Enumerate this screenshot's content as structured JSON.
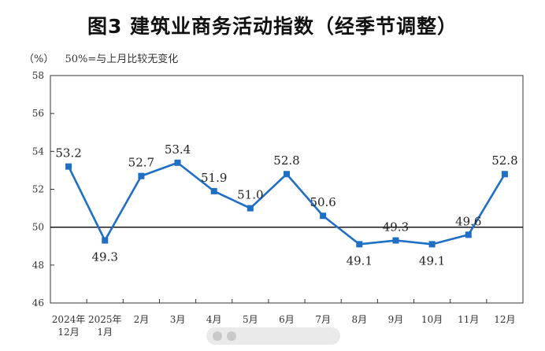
{
  "chart_data": {
    "type": "line",
    "title": "图3  建筑业商务活动指数（经季节调整）",
    "unit": "（%）",
    "reference_note": "50%=与上月比较无变化",
    "categories": [
      [
        "2024年",
        "12月"
      ],
      [
        "2025年",
        "1月"
      ],
      [
        "2月"
      ],
      [
        "3月"
      ],
      [
        "4月"
      ],
      [
        "5月"
      ],
      [
        "6月"
      ],
      [
        "7月"
      ],
      [
        "8月"
      ],
      [
        "9月"
      ],
      [
        "10月"
      ],
      [
        "11月"
      ],
      [
        "12月"
      ]
    ],
    "values": [
      53.2,
      49.3,
      52.7,
      53.4,
      51.9,
      51.0,
      52.8,
      50.6,
      49.1,
      49.3,
      49.1,
      49.6,
      52.8
    ],
    "data_labels": [
      "53.2",
      "49.3",
      "52.7",
      "53.4",
      "51.9",
      "51.0",
      "52.8",
      "50.6",
      "49.1",
      "49.3",
      "49.1",
      "49.6",
      "52.8"
    ],
    "label_position": [
      "above",
      "below",
      "above",
      "above",
      "above",
      "above",
      "above",
      "above",
      "below",
      "above",
      "below",
      "above",
      "above"
    ],
    "ylim": [
      46,
      58
    ],
    "yticks": [
      46,
      48,
      50,
      52,
      54,
      56,
      58
    ],
    "reference_line": 50,
    "grid": false,
    "line_color": "#1f6fc5",
    "reference_line_color": "#000000"
  }
}
